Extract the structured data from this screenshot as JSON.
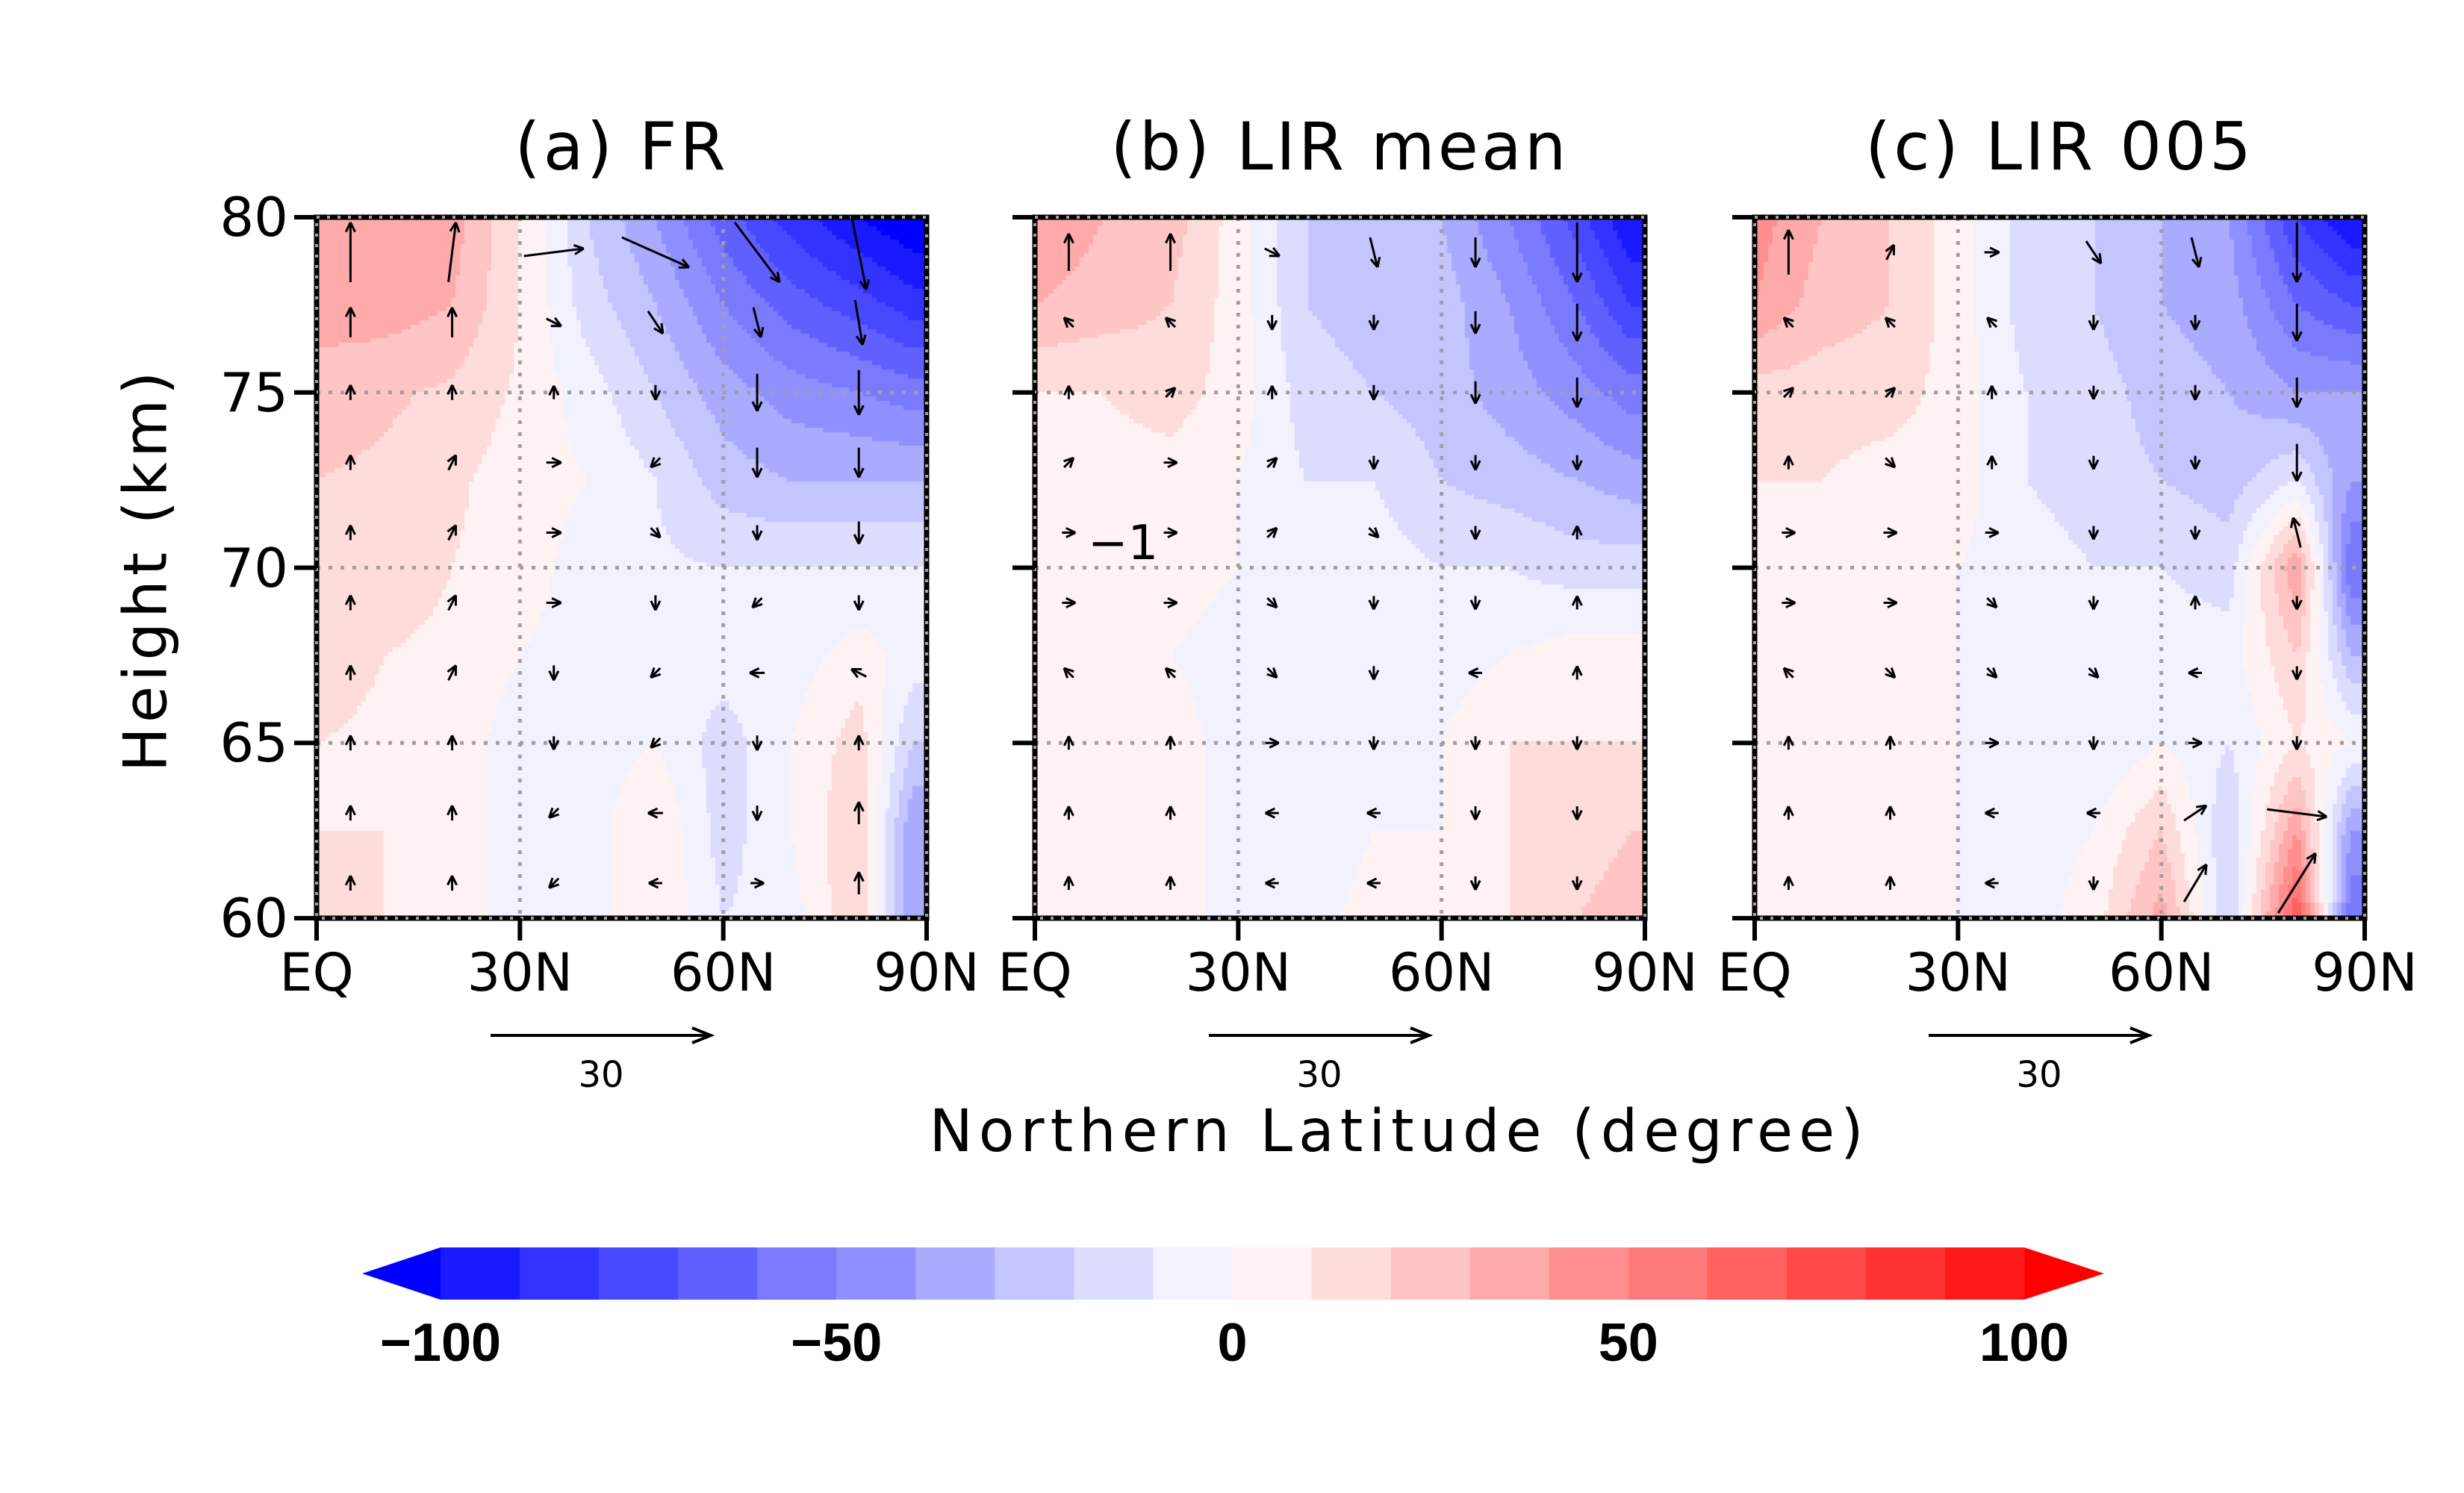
{
  "chart_data": {
    "type": "heatmap",
    "xlabel": "Northern Latitude (degree)",
    "ylabel": "Height (km)",
    "x_ticks": [
      "EQ",
      "30N",
      "60N",
      "90N"
    ],
    "x_tick_values": [
      0,
      30,
      60,
      90
    ],
    "y_ticks": [
      "60",
      "65",
      "70",
      "75",
      "80"
    ],
    "y_tick_values": [
      60,
      65,
      70,
      75,
      80
    ],
    "xlim": [
      0,
      90
    ],
    "ylim": [
      60,
      80
    ],
    "grid": true,
    "grid_lat": [
      30,
      60
    ],
    "grid_height": [
      65,
      70,
      75
    ],
    "lat_grid": [
      0,
      10,
      20,
      30,
      40,
      50,
      60,
      70,
      80,
      88
    ],
    "height_grid": [
      60,
      62.5,
      65,
      67.5,
      70,
      72.5,
      75,
      77.5,
      80
    ],
    "vector_reference": {
      "label": "30",
      "value": 30
    },
    "wind_lats": [
      5,
      20,
      35,
      50,
      65,
      80
    ],
    "wind_heights": [
      79,
      77,
      75,
      73,
      71,
      69,
      67,
      65,
      63,
      61
    ],
    "colorbar": {
      "levels": [
        -100,
        -90,
        -80,
        -70,
        -60,
        -50,
        -40,
        -30,
        -20,
        -10,
        0,
        10,
        20,
        30,
        40,
        50,
        60,
        70,
        80,
        90,
        100
      ],
      "colors": [
        "#1a1aff",
        "#3333ff",
        "#4848ff",
        "#6060ff",
        "#7a7aff",
        "#8f8fff",
        "#aaaaff",
        "#c4c4ff",
        "#dcdcff",
        "#f2f2ff",
        "#fff2f2",
        "#ffdcdc",
        "#ffc4c4",
        "#ffaaaa",
        "#ff8f8f",
        "#ff7a7a",
        "#ff6060",
        "#ff4848",
        "#ff3333",
        "#ff1a1a"
      ],
      "under_color": "#0000ff",
      "over_color": "#ff0000",
      "tick_labels": [
        "−100",
        "−50",
        "0",
        "50",
        "100"
      ],
      "tick_values": [
        -100,
        -50,
        0,
        50,
        100
      ],
      "orientation": "horizontal",
      "extend": "both"
    },
    "panels": [
      {
        "title": "(a) FR",
        "values": [
          [
            10,
            10,
            5,
            -5,
            -5,
            10,
            -10,
            -5,
            20,
            -40
          ],
          [
            10,
            10,
            5,
            -5,
            -5,
            10,
            -15,
            0,
            20,
            -40
          ],
          [
            10,
            8,
            5,
            -5,
            -5,
            0,
            -15,
            0,
            15,
            -20
          ],
          [
            15,
            10,
            8,
            0,
            -5,
            -5,
            -5,
            -5,
            5,
            -5
          ],
          [
            15,
            15,
            10,
            5,
            -5,
            -8,
            -10,
            -10,
            -10,
            -10
          ],
          [
            20,
            18,
            12,
            5,
            0,
            -10,
            -25,
            -30,
            -30,
            -30
          ],
          [
            25,
            22,
            18,
            8,
            -5,
            -20,
            -35,
            -45,
            -50,
            -55
          ],
          [
            35,
            35,
            30,
            10,
            -15,
            -30,
            -50,
            -65,
            -75,
            -85
          ],
          [
            40,
            40,
            35,
            10,
            -20,
            -40,
            -65,
            -85,
            -100,
            -110
          ]
        ],
        "wind": [
          [
            [
              0,
              8
            ],
            [
              1,
              8
            ],
            [
              8,
              1
            ],
            [
              9,
              -4
            ],
            [
              6,
              -8
            ],
            [
              2,
              -10
            ]
          ],
          [
            [
              0,
              4
            ],
            [
              0,
              4
            ],
            [
              2,
              -1
            ],
            [
              2,
              -3
            ],
            [
              1,
              -4
            ],
            [
              1,
              -6
            ]
          ],
          [
            [
              0,
              2
            ],
            [
              0,
              2
            ],
            [
              0,
              1
            ],
            [
              0,
              -2
            ],
            [
              0,
              -5
            ],
            [
              0,
              -6
            ]
          ],
          [
            [
              0,
              2
            ],
            [
              1,
              2
            ],
            [
              2,
              0
            ],
            [
              -1,
              -1
            ],
            [
              0,
              -4
            ],
            [
              0,
              -4
            ]
          ],
          [
            [
              0,
              2
            ],
            [
              1,
              2
            ],
            [
              2,
              0
            ],
            [
              1,
              -1
            ],
            [
              0,
              -2
            ],
            [
              0,
              -3
            ]
          ],
          [
            [
              0,
              2
            ],
            [
              1,
              2
            ],
            [
              2,
              0
            ],
            [
              0,
              -2
            ],
            [
              -1,
              -1
            ],
            [
              0,
              -2
            ]
          ],
          [
            [
              0,
              2
            ],
            [
              1,
              2
            ],
            [
              0,
              -2
            ],
            [
              -1,
              -1
            ],
            [
              -2,
              0
            ],
            [
              -2,
              1
            ]
          ],
          [
            [
              0,
              2
            ],
            [
              0,
              2
            ],
            [
              0,
              -1
            ],
            [
              -1,
              -1
            ],
            [
              0,
              -2
            ],
            [
              0,
              2
            ]
          ],
          [
            [
              0,
              2
            ],
            [
              0,
              2
            ],
            [
              -1,
              -1
            ],
            [
              -2,
              0
            ],
            [
              0,
              -2
            ],
            [
              0,
              3
            ]
          ],
          [
            [
              0,
              2
            ],
            [
              0,
              2
            ],
            [
              -1,
              -1
            ],
            [
              -1,
              0
            ],
            [
              1,
              0
            ],
            [
              0,
              3
            ]
          ]
        ],
        "contour_label": ""
      },
      {
        "title": "(b) LIR mean",
        "values": [
          [
            8,
            5,
            5,
            -5,
            -5,
            5,
            5,
            10,
            20,
            30
          ],
          [
            8,
            5,
            5,
            -5,
            -10,
            0,
            0,
            10,
            10,
            20
          ],
          [
            8,
            5,
            5,
            -5,
            -10,
            -5,
            0,
            10,
            10,
            10
          ],
          [
            5,
            5,
            0,
            -5,
            -5,
            -5,
            -5,
            0,
            5,
            5
          ],
          [
            5,
            5,
            5,
            0,
            -5,
            -5,
            -10,
            -10,
            -15,
            -15
          ],
          [
            5,
            5,
            5,
            0,
            -10,
            -10,
            -20,
            -25,
            -30,
            -35
          ],
          [
            10,
            10,
            15,
            5,
            -15,
            -20,
            -25,
            -35,
            -45,
            -55
          ],
          [
            30,
            25,
            20,
            5,
            -20,
            -25,
            -25,
            -40,
            -60,
            -80
          ],
          [
            40,
            30,
            25,
            5,
            -20,
            -25,
            -30,
            -50,
            -75,
            -100
          ]
        ],
        "wind": [
          [
            [
              0,
              5
            ],
            [
              0,
              5
            ],
            [
              2,
              -1
            ],
            [
              1,
              -4
            ],
            [
              0,
              -4
            ],
            [
              0,
              -8
            ]
          ],
          [
            [
              -1,
              1
            ],
            [
              -1,
              1
            ],
            [
              0,
              -2
            ],
            [
              0,
              -2
            ],
            [
              0,
              -3
            ],
            [
              0,
              -5
            ]
          ],
          [
            [
              0,
              1
            ],
            [
              1,
              1
            ],
            [
              0,
              1
            ],
            [
              0,
              -2
            ],
            [
              0,
              -3
            ],
            [
              0,
              -4
            ]
          ],
          [
            [
              1,
              1
            ],
            [
              1,
              0
            ],
            [
              1,
              1
            ],
            [
              0,
              -1
            ],
            [
              0,
              -2
            ],
            [
              0,
              -2
            ]
          ],
          [
            [
              1,
              0
            ],
            [
              1,
              0
            ],
            [
              1,
              1
            ],
            [
              1,
              -1
            ],
            [
              0,
              -1
            ],
            [
              0,
              1
            ]
          ],
          [
            [
              1,
              0
            ],
            [
              1,
              0
            ],
            [
              1,
              -1
            ],
            [
              0,
              -1
            ],
            [
              0,
              -1
            ],
            [
              0,
              1
            ]
          ],
          [
            [
              -1,
              1
            ],
            [
              -1,
              1
            ],
            [
              1,
              -1
            ],
            [
              0,
              -1
            ],
            [
              -1,
              0
            ],
            [
              0,
              1
            ]
          ],
          [
            [
              0,
              1
            ],
            [
              0,
              1
            ],
            [
              1,
              0
            ],
            [
              0,
              -1
            ],
            [
              0,
              -1
            ],
            [
              0,
              -1
            ]
          ],
          [
            [
              0,
              1
            ],
            [
              0,
              1
            ],
            [
              -1,
              0
            ],
            [
              -1,
              0
            ],
            [
              0,
              -1
            ],
            [
              0,
              -1
            ]
          ],
          [
            [
              0,
              1
            ],
            [
              0,
              1
            ],
            [
              -1,
              0
            ],
            [
              -1,
              0
            ],
            [
              0,
              -1
            ],
            [
              0,
              -1
            ]
          ]
        ],
        "contour_label": "−1"
      },
      {
        "title": "(c) LIR 005",
        "values": [
          [
            8,
            5,
            5,
            0,
            -5,
            5,
            35,
            -20,
            70,
            -60
          ],
          [
            8,
            5,
            5,
            0,
            -5,
            0,
            20,
            -20,
            40,
            -40
          ],
          [
            8,
            5,
            5,
            0,
            -5,
            -10,
            0,
            -10,
            10,
            0
          ],
          [
            5,
            5,
            5,
            0,
            -5,
            -10,
            -5,
            -5,
            20,
            -30
          ],
          [
            5,
            5,
            0,
            0,
            -5,
            -10,
            -10,
            -15,
            40,
            -60
          ],
          [
            10,
            10,
            5,
            5,
            -10,
            -15,
            -20,
            -25,
            -10,
            -40
          ],
          [
            15,
            15,
            15,
            5,
            -10,
            -15,
            -25,
            -30,
            -40,
            -40
          ],
          [
            40,
            25,
            20,
            5,
            -15,
            -20,
            -30,
            -35,
            -60,
            -70
          ],
          [
            45,
            30,
            20,
            5,
            -15,
            -20,
            -30,
            -40,
            -80,
            -100
          ]
        ],
        "wind": [
          [
            [
              0,
              6
            ],
            [
              1,
              2
            ],
            [
              2,
              0
            ],
            [
              2,
              -3
            ],
            [
              1,
              -4
            ],
            [
              0,
              -8
            ]
          ],
          [
            [
              -1,
              1
            ],
            [
              -1,
              1
            ],
            [
              -1,
              1
            ],
            [
              0,
              -2
            ],
            [
              0,
              -2
            ],
            [
              0,
              -5
            ]
          ],
          [
            [
              1,
              1
            ],
            [
              1,
              1
            ],
            [
              0,
              1
            ],
            [
              0,
              -1
            ],
            [
              0,
              -2
            ],
            [
              0,
              -4
            ]
          ],
          [
            [
              0,
              1
            ],
            [
              1,
              -1
            ],
            [
              0,
              1
            ],
            [
              0,
              -1
            ],
            [
              0,
              -1
            ],
            [
              0,
              -5
            ]
          ],
          [
            [
              1,
              0
            ],
            [
              1,
              0
            ],
            [
              1,
              0
            ],
            [
              0,
              -1
            ],
            [
              0,
              -1
            ],
            [
              -1,
              4
            ]
          ],
          [
            [
              1,
              0
            ],
            [
              1,
              0
            ],
            [
              1,
              -1
            ],
            [
              0,
              -1
            ],
            [
              0,
              1
            ],
            [
              0,
              -1
            ]
          ],
          [
            [
              -1,
              1
            ],
            [
              1,
              -1
            ],
            [
              1,
              -1
            ],
            [
              1,
              -1
            ],
            [
              -1,
              0
            ],
            [
              0,
              -1
            ]
          ],
          [
            [
              0,
              1
            ],
            [
              0,
              1
            ],
            [
              1,
              0
            ],
            [
              0,
              -1
            ],
            [
              1,
              0
            ],
            [
              0,
              -1
            ]
          ],
          [
            [
              0,
              1
            ],
            [
              0,
              1
            ],
            [
              -1,
              0
            ],
            [
              -1,
              0
            ],
            [
              3,
              2
            ],
            [
              8,
              -1
            ]
          ],
          [
            [
              0,
              1
            ],
            [
              0,
              1
            ],
            [
              -1,
              0
            ],
            [
              0,
              -1
            ],
            [
              3,
              5
            ],
            [
              5,
              8
            ]
          ]
        ],
        "contour_label": ""
      }
    ]
  }
}
